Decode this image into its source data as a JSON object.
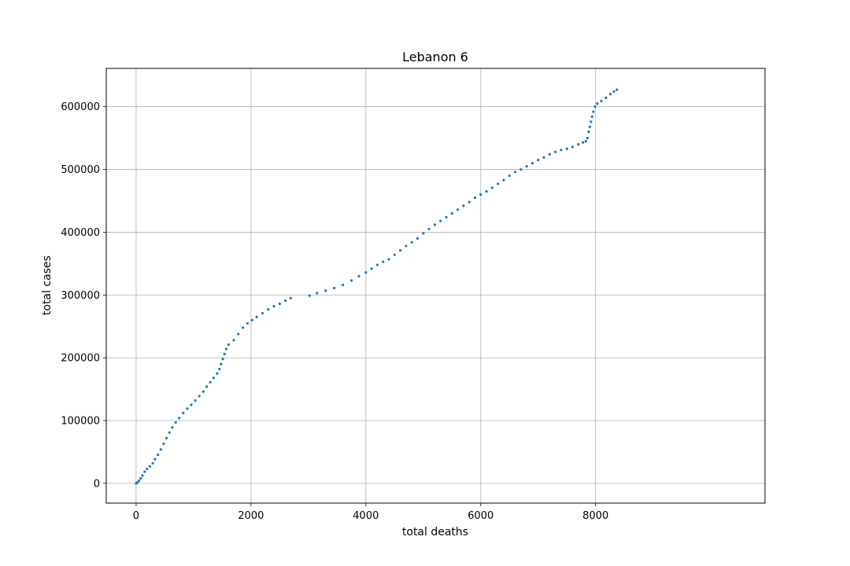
{
  "chart_data": {
    "type": "scatter",
    "title": "Lebanon 6",
    "xlabel": "total deaths",
    "ylabel": "total cases",
    "xlim": [
      -520,
      10950
    ],
    "ylim": [
      -31500,
      661000
    ],
    "xticks": [
      0,
      2000,
      4000,
      6000,
      8000
    ],
    "yticks": [
      0,
      100000,
      200000,
      300000,
      400000,
      500000,
      600000
    ],
    "xtick_labels": [
      "0",
      "2000",
      "4000",
      "6000",
      "8000"
    ],
    "ytick_labels": [
      "0",
      "100000",
      "200000",
      "300000",
      "400000",
      "500000",
      "600000"
    ],
    "grid": true,
    "marker_color": "#1f77b4",
    "series": [
      {
        "points": [
          [
            0,
            0
          ],
          [
            20,
            1500
          ],
          [
            50,
            4000
          ],
          [
            80,
            8000
          ],
          [
            110,
            12500
          ],
          [
            150,
            18500
          ],
          [
            190,
            23000
          ],
          [
            240,
            27000
          ],
          [
            290,
            32000
          ],
          [
            330,
            38500
          ],
          [
            380,
            45500
          ],
          [
            430,
            54000
          ],
          [
            480,
            63000
          ],
          [
            530,
            72000
          ],
          [
            580,
            81000
          ],
          [
            630,
            89000
          ],
          [
            690,
            97000
          ],
          [
            750,
            104000
          ],
          [
            820,
            112000
          ],
          [
            890,
            119000
          ],
          [
            960,
            125000
          ],
          [
            1030,
            132000
          ],
          [
            1100,
            139000
          ],
          [
            1170,
            146000
          ],
          [
            1230,
            154000
          ],
          [
            1290,
            161000
          ],
          [
            1350,
            168000
          ],
          [
            1410,
            175000
          ],
          [
            1450,
            182000
          ],
          [
            1480,
            190000
          ],
          [
            1510,
            198000
          ],
          [
            1540,
            206000
          ],
          [
            1570,
            214000
          ],
          [
            1610,
            221000
          ],
          [
            1700,
            228000
          ],
          [
            1780,
            238000
          ],
          [
            1860,
            248000
          ],
          [
            1940,
            255000
          ],
          [
            2020,
            260000
          ],
          [
            2100,
            265000
          ],
          [
            2200,
            271000
          ],
          [
            2300,
            277000
          ],
          [
            2400,
            282000
          ],
          [
            2500,
            286000
          ],
          [
            2600,
            291000
          ],
          [
            2690,
            295000
          ],
          [
            3020,
            299000
          ],
          [
            3150,
            303000
          ],
          [
            3300,
            307000
          ],
          [
            3450,
            311000
          ],
          [
            3600,
            316000
          ],
          [
            3750,
            323000
          ],
          [
            3880,
            330000
          ],
          [
            4000,
            336000
          ],
          [
            4100,
            342000
          ],
          [
            4200,
            348000
          ],
          [
            4300,
            353000
          ],
          [
            4400,
            357000
          ],
          [
            4500,
            364000
          ],
          [
            4600,
            371000
          ],
          [
            4700,
            378000
          ],
          [
            4800,
            384000
          ],
          [
            4900,
            390000
          ],
          [
            5000,
            398000
          ],
          [
            5100,
            405000
          ],
          [
            5200,
            412000
          ],
          [
            5300,
            418000
          ],
          [
            5400,
            424000
          ],
          [
            5500,
            430000
          ],
          [
            5600,
            436000
          ],
          [
            5700,
            442000
          ],
          [
            5800,
            448000
          ],
          [
            5900,
            455000
          ],
          [
            6000,
            460000
          ],
          [
            6100,
            465000
          ],
          [
            6200,
            471000
          ],
          [
            6300,
            477000
          ],
          [
            6400,
            483000
          ],
          [
            6500,
            490000
          ],
          [
            6600,
            496000
          ],
          [
            6700,
            500000
          ],
          [
            6800,
            505000
          ],
          [
            6900,
            510000
          ],
          [
            7000,
            515000
          ],
          [
            7100,
            519000
          ],
          [
            7200,
            524000
          ],
          [
            7300,
            528000
          ],
          [
            7400,
            531000
          ],
          [
            7500,
            533000
          ],
          [
            7600,
            536000
          ],
          [
            7700,
            540000
          ],
          [
            7780,
            543000
          ],
          [
            7830,
            545000
          ],
          [
            7860,
            550000
          ],
          [
            7880,
            560000
          ],
          [
            7900,
            568000
          ],
          [
            7920,
            576000
          ],
          [
            7940,
            584000
          ],
          [
            7960,
            592000
          ],
          [
            7990,
            600000
          ],
          [
            8030,
            605000
          ],
          [
            8100,
            609000
          ],
          [
            8180,
            614000
          ],
          [
            8260,
            620000
          ],
          [
            8320,
            624000
          ],
          [
            8370,
            627000
          ]
        ]
      }
    ]
  }
}
